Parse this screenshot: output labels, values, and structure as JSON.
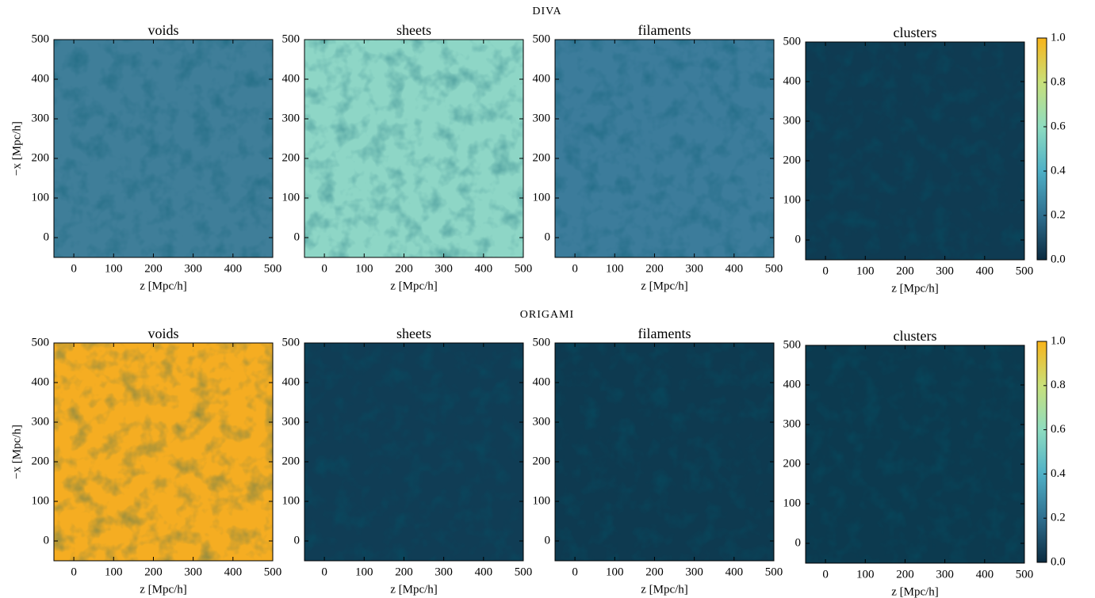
{
  "row_titles": [
    "DIVA",
    "ORIGAMI"
  ],
  "colorbar": {
    "lim": [
      0,
      1
    ],
    "ticks": [
      {
        "value": 0,
        "label": "0.0"
      },
      {
        "value": 0.2,
        "label": "0.2"
      },
      {
        "value": 0.4,
        "label": "0.4"
      },
      {
        "value": 0.6,
        "label": "0.6"
      },
      {
        "value": 0.8,
        "label": "0.8"
      },
      {
        "value": 1,
        "label": "1.0"
      }
    ],
    "colors": [
      "#0b2b40",
      "#2f6f8f",
      "#4fb0c6",
      "#8edcc0",
      "#c8e07a",
      "#f8b41a"
    ]
  },
  "chart_data": [
    {
      "type": "heatmap",
      "title": "voids",
      "xlabel": "z [Mpc/h]",
      "ylabel": "−x [Mpc/h]",
      "xlim": [
        -50,
        500
      ],
      "ylim": [
        -50,
        500
      ],
      "xticks": [
        0,
        100,
        200,
        300,
        400,
        500
      ],
      "yticks": [
        0,
        100,
        200,
        300,
        400,
        500
      ],
      "color": "#3f7e99"
    },
    {
      "type": "heatmap",
      "title": "sheets",
      "xlabel": "z [Mpc/h]",
      "xlim": [
        -50,
        500
      ],
      "ylim": [
        -50,
        500
      ],
      "xticks": [
        0,
        100,
        200,
        300,
        400,
        500
      ],
      "yticks": [
        0,
        100,
        200,
        300,
        400,
        500
      ],
      "color": "#8ed6c6"
    },
    {
      "type": "heatmap",
      "title": "filaments",
      "xlabel": "z [Mpc/h]",
      "xlim": [
        -50,
        500
      ],
      "ylim": [
        -50,
        500
      ],
      "xticks": [
        0,
        100,
        200,
        300,
        400,
        500
      ],
      "yticks": [
        0,
        100,
        200,
        300,
        400,
        500
      ],
      "color": "#3c7c9b"
    },
    {
      "type": "heatmap",
      "title": "clusters",
      "xlabel": "z [Mpc/h]",
      "xlim": [
        -50,
        500
      ],
      "ylim": [
        -50,
        500
      ],
      "xticks": [
        0,
        100,
        200,
        300,
        400,
        500
      ],
      "yticks": [
        0,
        100,
        200,
        300,
        400,
        500
      ],
      "color": "#0f3b52"
    },
    {
      "type": "heatmap",
      "title": "voids",
      "xlabel": "z [Mpc/h]",
      "ylabel": "−x [Mpc/h]",
      "xlim": [
        -50,
        500
      ],
      "ylim": [
        -50,
        500
      ],
      "xticks": [
        0,
        100,
        200,
        300,
        400,
        500
      ],
      "yticks": [
        0,
        100,
        200,
        300,
        400,
        500
      ],
      "color": "#f5ad22"
    },
    {
      "type": "heatmap",
      "title": "sheets",
      "xlabel": "z [Mpc/h]",
      "xlim": [
        -50,
        500
      ],
      "ylim": [
        -50,
        500
      ],
      "xticks": [
        0,
        100,
        200,
        300,
        400,
        500
      ],
      "yticks": [
        0,
        100,
        200,
        300,
        400,
        500
      ],
      "color": "#103d55"
    },
    {
      "type": "heatmap",
      "title": "filaments",
      "xlabel": "z [Mpc/h]",
      "xlim": [
        -50,
        500
      ],
      "ylim": [
        -50,
        500
      ],
      "xticks": [
        0,
        100,
        200,
        300,
        400,
        500
      ],
      "yticks": [
        0,
        100,
        200,
        300,
        400,
        500
      ],
      "color": "#0e3a50"
    },
    {
      "type": "heatmap",
      "title": "clusters",
      "xlabel": "z [Mpc/h]",
      "xlim": [
        -50,
        500
      ],
      "ylim": [
        -50,
        500
      ],
      "xticks": [
        0,
        100,
        200,
        300,
        400,
        500
      ],
      "yticks": [
        0,
        100,
        200,
        300,
        400,
        500
      ],
      "color": "#0c3a4f"
    }
  ]
}
